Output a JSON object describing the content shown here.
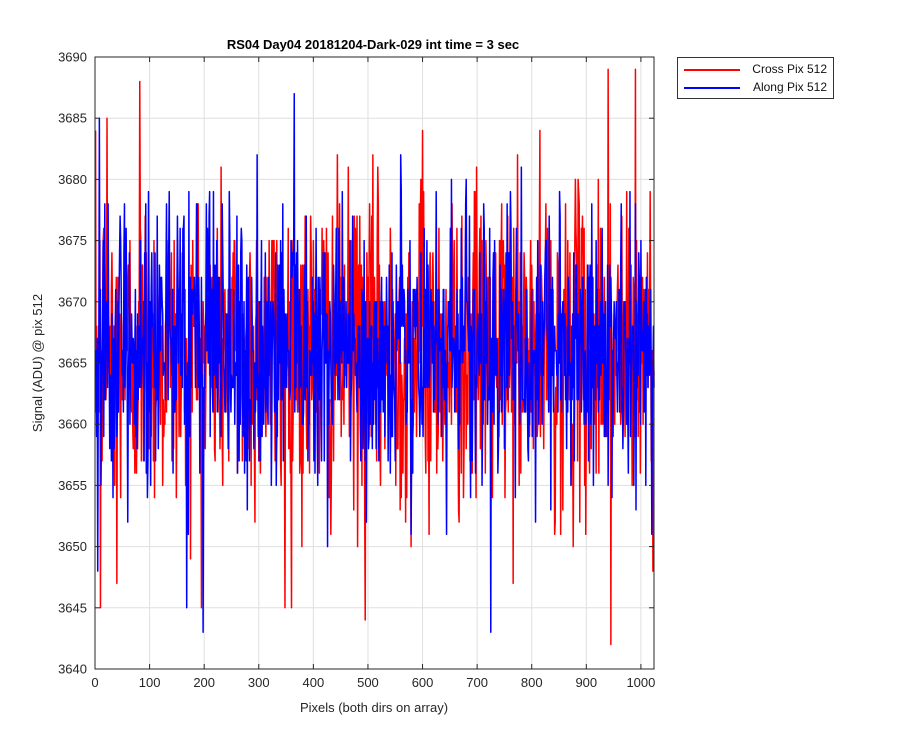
{
  "chart_data": {
    "type": "line",
    "title": "RS04 Day04 20181204-Dark-029 int time = 3 sec",
    "xlabel": "Pixels (both dirs on array)",
    "ylabel": "Signal (ADU) @ pix 512",
    "xlim": [
      0,
      1024
    ],
    "ylim": [
      3640,
      3690
    ],
    "xticks": [
      0,
      100,
      200,
      300,
      400,
      500,
      600,
      700,
      800,
      900,
      1000
    ],
    "yticks": [
      3640,
      3645,
      3650,
      3655,
      3660,
      3665,
      3670,
      3675,
      3680,
      3685,
      3690
    ],
    "grid": true,
    "legend_position": "outside-top-right",
    "series": [
      {
        "name": "Cross Pix 512",
        "color": "#ff0000",
        "mean": 3666,
        "sample_points": [
          {
            "x": 10,
            "y": 3645
          },
          {
            "x": 22,
            "y": 3685
          },
          {
            "x": 40,
            "y": 3647
          },
          {
            "x": 82,
            "y": 3688
          },
          {
            "x": 348,
            "y": 3645
          },
          {
            "x": 495,
            "y": 3644
          },
          {
            "x": 600,
            "y": 3684
          },
          {
            "x": 945,
            "y": 3642
          },
          {
            "x": 940,
            "y": 3689
          },
          {
            "x": 990,
            "y": 3689
          }
        ]
      },
      {
        "name": "Along Pix 512",
        "color": "#0000ff",
        "mean": 3666,
        "sample_points": [
          {
            "x": 5,
            "y": 3648
          },
          {
            "x": 8,
            "y": 3685
          },
          {
            "x": 168,
            "y": 3645
          },
          {
            "x": 198,
            "y": 3643
          },
          {
            "x": 365,
            "y": 3687
          },
          {
            "x": 725,
            "y": 3643
          },
          {
            "x": 1020,
            "y": 3651
          }
        ]
      }
    ]
  }
}
